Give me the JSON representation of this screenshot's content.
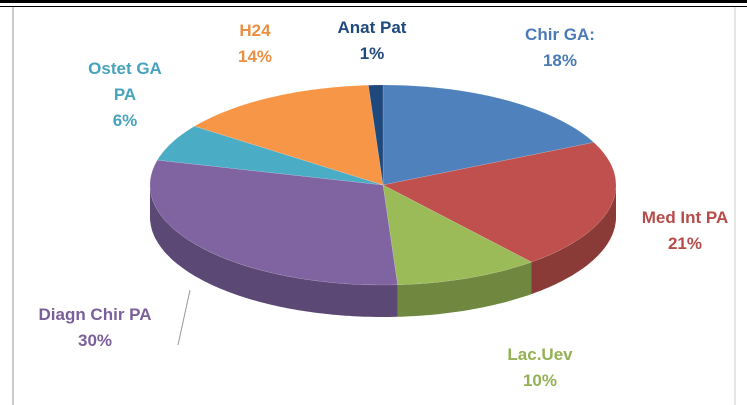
{
  "chart_data": {
    "type": "pie",
    "categories": [
      "Chir GA:",
      "Med Int PA",
      "Lac.Uev",
      "Diagn Chir PA",
      "Ostet GA PA",
      "H24",
      "Anat Pat"
    ],
    "values": [
      18,
      21,
      10,
      30,
      6,
      14,
      1
    ],
    "value_labels": [
      "18%",
      "21%",
      "10%",
      "30%",
      "6%",
      "14%",
      "1%"
    ],
    "colors": [
      "#4f81bd",
      "#c0504d",
      "#9bbb59",
      "#8064a2",
      "#4bacc6",
      "#f79646",
      "#1f497d"
    ]
  }
}
